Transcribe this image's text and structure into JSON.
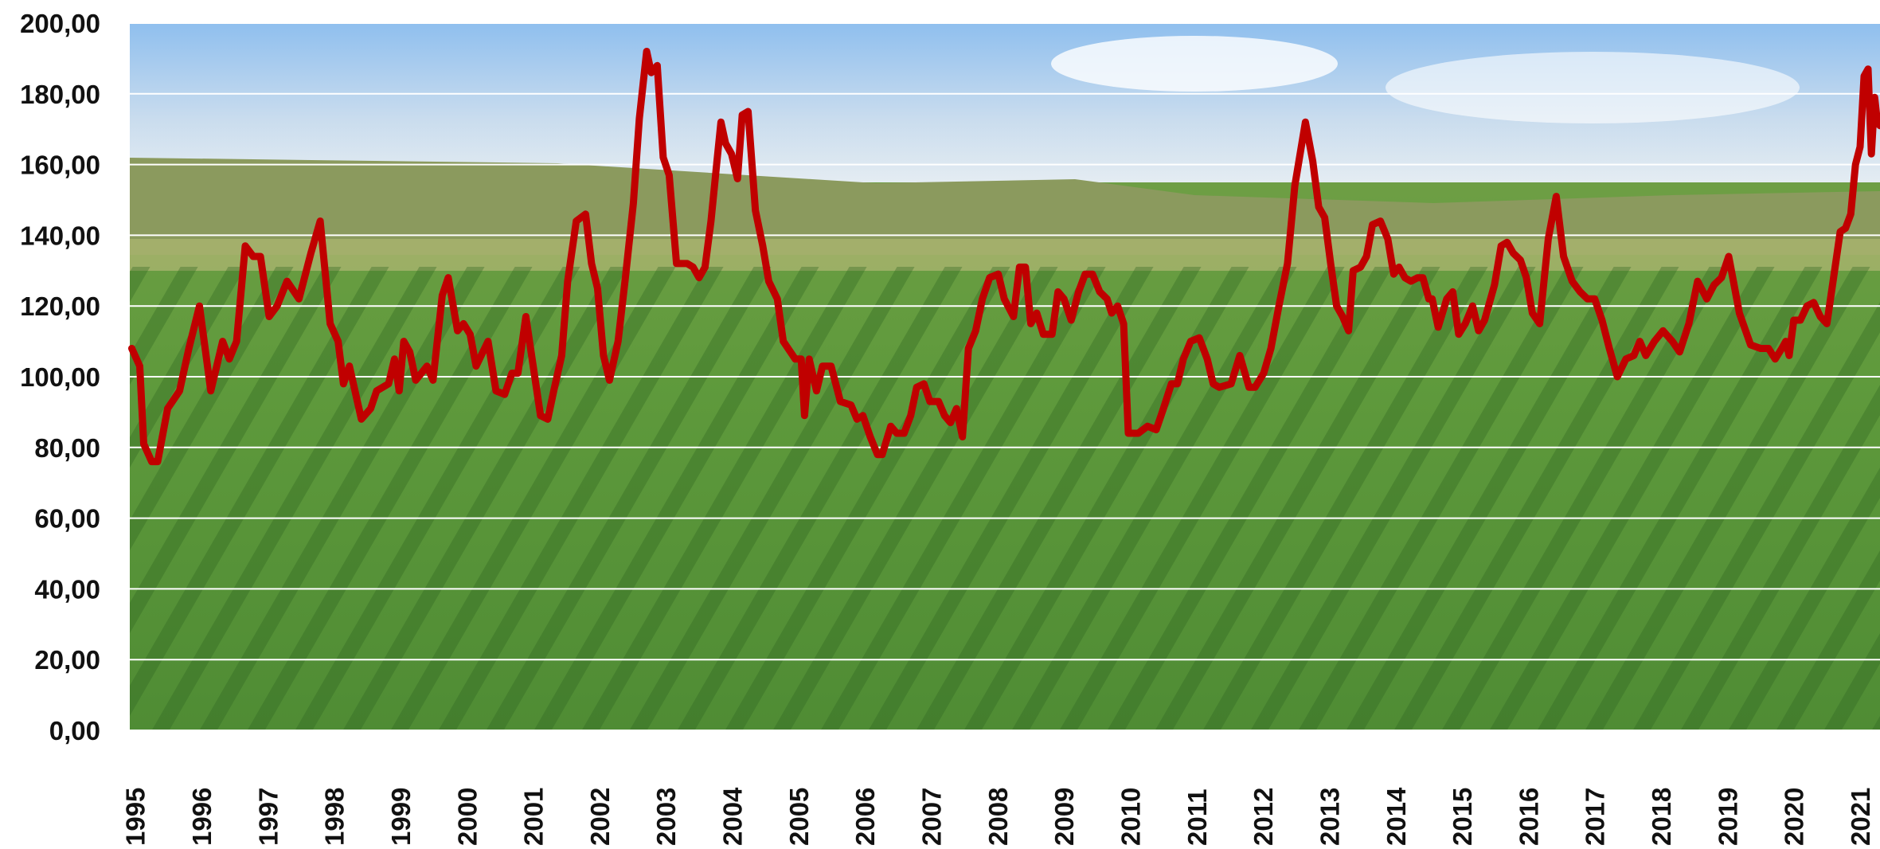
{
  "chart_data": {
    "type": "line",
    "color": "#c00000",
    "grid": true,
    "xlim": [
      1994.92,
      2021.3
    ],
    "xticks": [
      1995,
      1996,
      1997,
      1998,
      1999,
      2000,
      2001,
      2002,
      2003,
      2004,
      2005,
      2006,
      2007,
      2008,
      2009,
      2010,
      2011,
      2012,
      2013,
      2014,
      2015,
      2016,
      2017,
      2018,
      2019,
      2020,
      2021
    ],
    "ylim": [
      0,
      200
    ],
    "yticks": [
      {
        "value": 0,
        "label": "0,00"
      },
      {
        "value": 20,
        "label": "20,00"
      },
      {
        "value": 40,
        "label": "40,00"
      },
      {
        "value": 60,
        "label": "60,00"
      },
      {
        "value": 80,
        "label": "80,00"
      },
      {
        "value": 100,
        "label": "100,00"
      },
      {
        "value": 120,
        "label": "120,00"
      },
      {
        "value": 140,
        "label": "140,00"
      },
      {
        "value": 160,
        "label": "160,00"
      },
      {
        "value": 180,
        "label": "180,00"
      },
      {
        "value": 200,
        "label": "200,00"
      }
    ],
    "x": [
      1994.95,
      1995.07,
      1995.13,
      1995.25,
      1995.34,
      1995.49,
      1995.67,
      1995.81,
      1995.97,
      1996.14,
      1996.32,
      1996.42,
      1996.53,
      1996.66,
      1996.78,
      1996.89,
      1997.02,
      1997.14,
      1997.29,
      1997.47,
      1997.65,
      1997.79,
      1997.94,
      1998.06,
      1998.14,
      1998.23,
      1998.41,
      1998.55,
      1998.64,
      1998.82,
      1998.91,
      1998.98,
      1999.05,
      1999.14,
      1999.23,
      1999.4,
      1999.49,
      1999.63,
      1999.72,
      1999.86,
      1999.95,
      2000.05,
      2000.14,
      2000.32,
      2000.44,
      2000.57,
      2000.68,
      2000.77,
      2000.89,
      2001.0,
      2001.11,
      2001.22,
      2001.31,
      2001.43,
      2001.52,
      2001.65,
      2001.79,
      2001.88,
      2001.97,
      2002.06,
      2002.15,
      2002.28,
      2002.39,
      2002.51,
      2002.6,
      2002.71,
      2002.78,
      2002.87,
      2002.96,
      2003.05,
      2003.16,
      2003.32,
      2003.41,
      2003.5,
      2003.59,
      2003.68,
      2003.77,
      2003.83,
      2003.9,
      2003.99,
      2004.08,
      2004.15,
      2004.24,
      2004.35,
      2004.46,
      2004.55,
      2004.68,
      2004.77,
      2004.95,
      2005.04,
      2005.09,
      2005.16,
      2005.27,
      2005.36,
      2005.49,
      2005.63,
      2005.79,
      2005.88,
      2005.97,
      2006.08,
      2006.19,
      2006.26,
      2006.39,
      2006.48,
      2006.59,
      2006.69,
      2006.78,
      2006.89,
      2006.98,
      2007.11,
      2007.2,
      2007.29,
      2007.38,
      2007.47,
      2007.56,
      2007.67,
      2007.77,
      2007.88,
      2008.01,
      2008.1,
      2008.24,
      2008.33,
      2008.42,
      2008.5,
      2008.59,
      2008.69,
      2008.82,
      2008.91,
      2009.0,
      2009.11,
      2009.22,
      2009.32,
      2009.43,
      2009.54,
      2009.65,
      2009.72,
      2009.81,
      2009.9,
      2009.97,
      2010.12,
      2010.26,
      2010.39,
      2010.5,
      2010.62,
      2010.71,
      2010.8,
      2010.91,
      2011.04,
      2011.16,
      2011.25,
      2011.34,
      2011.52,
      2011.65,
      2011.79,
      2011.88,
      2012.01,
      2012.12,
      2012.24,
      2012.37,
      2012.48,
      2012.64,
      2012.75,
      2012.84,
      2012.93,
      2013.02,
      2013.11,
      2013.2,
      2013.29,
      2013.36,
      2013.47,
      2013.56,
      2013.65,
      2013.77,
      2013.88,
      2013.97,
      2014.05,
      2014.14,
      2014.23,
      2014.33,
      2014.41,
      2014.5,
      2014.55,
      2014.64,
      2014.77,
      2014.86,
      2014.95,
      2015.05,
      2015.16,
      2015.25,
      2015.34,
      2015.49,
      2015.59,
      2015.68,
      2015.77,
      2015.88,
      2015.97,
      2016.06,
      2016.17,
      2016.3,
      2016.42,
      2016.53,
      2016.66,
      2016.78,
      2016.89,
      2017.0,
      2017.11,
      2017.22,
      2017.34,
      2017.47,
      2017.59,
      2017.68,
      2017.77,
      2017.9,
      2018.03,
      2018.17,
      2018.28,
      2018.42,
      2018.55,
      2018.69,
      2018.8,
      2018.91,
      2019.02,
      2019.09,
      2019.18,
      2019.35,
      2019.5,
      2019.62,
      2019.72,
      2019.82,
      2019.88,
      2019.93,
      2020.0,
      2020.1,
      2020.2,
      2020.3,
      2020.4,
      2020.5,
      2020.6,
      2020.7,
      2020.78,
      2020.86,
      2020.93,
      2021.0,
      2021.06,
      2021.12,
      2021.17,
      2021.22,
      2021.26,
      2021.3
    ],
    "values": [
      108,
      103,
      81,
      76,
      76,
      91,
      96,
      108,
      120,
      96,
      110,
      105,
      110,
      137,
      134,
      134,
      117,
      120,
      127,
      122,
      135,
      144,
      115,
      110,
      98,
      103,
      88,
      91,
      96,
      98,
      105,
      96,
      110,
      107,
      99,
      103,
      99,
      123,
      128,
      113,
      115,
      112,
      103,
      110,
      96,
      95,
      101,
      101,
      117,
      103,
      89,
      88,
      96,
      106,
      127,
      144,
      146,
      132,
      125,
      106,
      99,
      110,
      128,
      149,
      173,
      192,
      186,
      188,
      162,
      157,
      132,
      132,
      131,
      128,
      131,
      144,
      161,
      172,
      166,
      163,
      156,
      174,
      175,
      147,
      137,
      127,
      122,
      110,
      105,
      105,
      89,
      105,
      96,
      103,
      103,
      93,
      92,
      88,
      89,
      83,
      78,
      78,
      86,
      84,
      84,
      89,
      97,
      98,
      93,
      93,
      89,
      87,
      91,
      83,
      108,
      113,
      122,
      128,
      129,
      122,
      117,
      131,
      131,
      115,
      118,
      112,
      112,
      124,
      122,
      116,
      124,
      129,
      129,
      124,
      122,
      118,
      120,
      115,
      84,
      84,
      86,
      85,
      91,
      98,
      98,
      105,
      110,
      111,
      105,
      98,
      97,
      98,
      106,
      97,
      97,
      101,
      108,
      120,
      132,
      154,
      172,
      161,
      148,
      145,
      132,
      120,
      117,
      113,
      130,
      131,
      134,
      143,
      144,
      139,
      129,
      131,
      128,
      127,
      128,
      128,
      122,
      122,
      114,
      122,
      124,
      112,
      115,
      120,
      113,
      116,
      126,
      137,
      138,
      135,
      133,
      128,
      118,
      115,
      139,
      151,
      134,
      127,
      124,
      122,
      122,
      116,
      108,
      100,
      105,
      106,
      110,
      106,
      110,
      113,
      110,
      107,
      115,
      127,
      122,
      126,
      128,
      134,
      127,
      118,
      109,
      108,
      108,
      105,
      108,
      110,
      106,
      116,
      116,
      120,
      121,
      117,
      115,
      128,
      141,
      142,
      146,
      160,
      165,
      185,
      187,
      163,
      179,
      172,
      171
    ]
  }
}
